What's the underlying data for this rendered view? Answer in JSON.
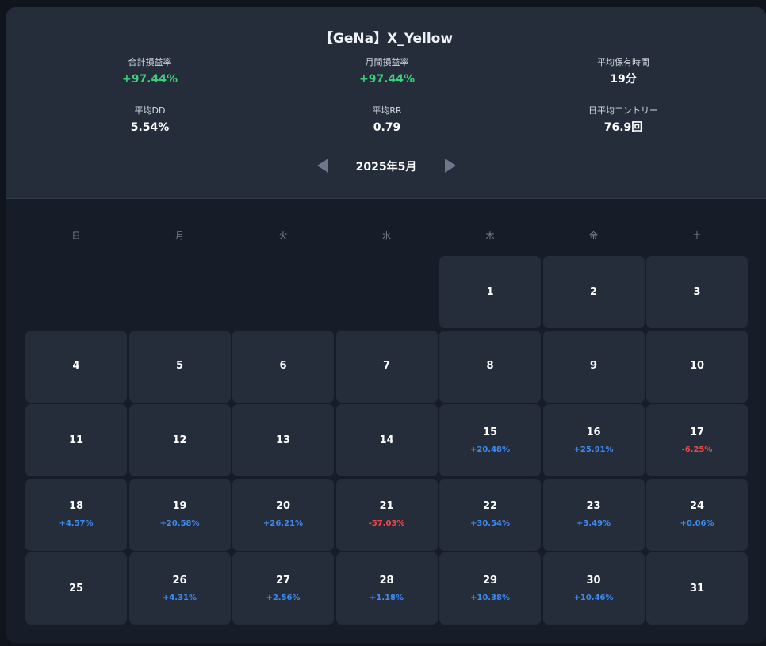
{
  "title": "【GeNa】X_Yellow",
  "stats": [
    {
      "label": "合計損益率",
      "value": "+97.44%",
      "tone": "green"
    },
    {
      "label": "月間損益率",
      "value": "+97.44%",
      "tone": "green"
    },
    {
      "label": "平均保有時間",
      "value": "19分",
      "tone": "white"
    },
    {
      "label": "平均DD",
      "value": "5.54%",
      "tone": "white"
    },
    {
      "label": "平均RR",
      "value": "0.79",
      "tone": "white"
    },
    {
      "label": "日平均エントリー",
      "value": "76.9回",
      "tone": "white"
    }
  ],
  "month_nav": {
    "label": "2025年5月",
    "prev_icon": "triangle-left-icon",
    "next_icon": "triangle-right-icon"
  },
  "weekdays": [
    "日",
    "月",
    "火",
    "水",
    "木",
    "金",
    "土"
  ],
  "calendar": {
    "leading_blanks": 4,
    "days": [
      {
        "day": "1",
        "pnl": ""
      },
      {
        "day": "2",
        "pnl": ""
      },
      {
        "day": "3",
        "pnl": ""
      },
      {
        "day": "4",
        "pnl": ""
      },
      {
        "day": "5",
        "pnl": ""
      },
      {
        "day": "6",
        "pnl": ""
      },
      {
        "day": "7",
        "pnl": ""
      },
      {
        "day": "8",
        "pnl": ""
      },
      {
        "day": "9",
        "pnl": ""
      },
      {
        "day": "10",
        "pnl": ""
      },
      {
        "day": "11",
        "pnl": ""
      },
      {
        "day": "12",
        "pnl": ""
      },
      {
        "day": "13",
        "pnl": ""
      },
      {
        "day": "14",
        "pnl": ""
      },
      {
        "day": "15",
        "pnl": "+20.48%"
      },
      {
        "day": "16",
        "pnl": "+25.91%"
      },
      {
        "day": "17",
        "pnl": "-6.25%"
      },
      {
        "day": "18",
        "pnl": "+4.57%"
      },
      {
        "day": "19",
        "pnl": "+20.58%"
      },
      {
        "day": "20",
        "pnl": "+26.21%"
      },
      {
        "day": "21",
        "pnl": "-57.03%"
      },
      {
        "day": "22",
        "pnl": "+30.54%"
      },
      {
        "day": "23",
        "pnl": "+3.49%"
      },
      {
        "day": "24",
        "pnl": "+0.06%"
      },
      {
        "day": "25",
        "pnl": ""
      },
      {
        "day": "26",
        "pnl": "+4.31%"
      },
      {
        "day": "27",
        "pnl": "+2.56%"
      },
      {
        "day": "28",
        "pnl": "+1.18%"
      },
      {
        "day": "29",
        "pnl": "+10.38%"
      },
      {
        "day": "30",
        "pnl": "+10.46%"
      },
      {
        "day": "31",
        "pnl": ""
      }
    ]
  },
  "colors": {
    "positive": "#3d8bf0",
    "negative": "#ef4a4a",
    "stat_green": "#37d17a"
  }
}
